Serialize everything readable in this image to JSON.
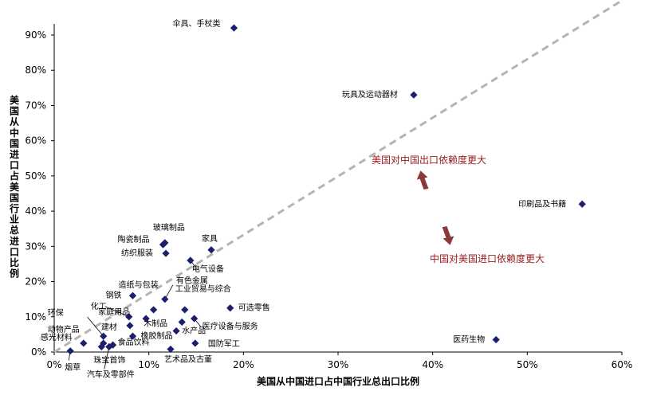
{
  "chart_data": {
    "type": "scatter",
    "xlabel": "美国从中国进口占中国行业总出口比例",
    "ylabel": "美国从中国进口占美国行业总进口比例",
    "xlim": [
      0,
      0.6
    ],
    "ylim": [
      0,
      0.9
    ],
    "x_ticks": [
      {
        "value": 0,
        "label": "0%"
      },
      {
        "value": 0.1,
        "label": "10%"
      },
      {
        "value": 0.2,
        "label": "20%"
      },
      {
        "value": 0.3,
        "label": "30%"
      },
      {
        "value": 0.4,
        "label": "40%"
      },
      {
        "value": 0.5,
        "label": "50%"
      },
      {
        "value": 0.6,
        "label": "60%"
      }
    ],
    "y_ticks": [
      {
        "value": 0,
        "label": "0%"
      },
      {
        "value": 0.1,
        "label": "10%"
      },
      {
        "value": 0.2,
        "label": "20%"
      },
      {
        "value": 0.3,
        "label": "30%"
      },
      {
        "value": 0.4,
        "label": "40%"
      },
      {
        "value": 0.5,
        "label": "50%"
      },
      {
        "value": 0.6,
        "label": "60%"
      },
      {
        "value": 0.7,
        "label": "70%"
      },
      {
        "value": 0.8,
        "label": "80%"
      },
      {
        "value": 0.9,
        "label": "90%"
      }
    ],
    "marker_color": "#1a1f6e",
    "trend_line": {
      "from": [
        0,
        0
      ],
      "to": [
        0.6,
        0.6
      ],
      "color": "#b4b4b4",
      "style": "dashed"
    },
    "points": [
      {
        "label": "伞具、手杖类",
        "x": 0.19,
        "y": 0.92
      },
      {
        "label": "玩具及运动器材",
        "x": 0.38,
        "y": 0.73
      },
      {
        "label": "印刷品及书籍",
        "x": 0.558,
        "y": 0.42
      },
      {
        "label": "医药生物",
        "x": 0.467,
        "y": 0.035
      },
      {
        "label": "玻璃制品",
        "x": 0.117,
        "y": 0.31
      },
      {
        "label": "陶瓷制品",
        "x": 0.115,
        "y": 0.305
      },
      {
        "label": "纺织服装",
        "x": 0.118,
        "y": 0.28
      },
      {
        "label": "家具",
        "x": 0.166,
        "y": 0.29
      },
      {
        "label": "电气设备",
        "x": 0.144,
        "y": 0.26
      },
      {
        "label": "钢铁",
        "x": 0.083,
        "y": 0.16
      },
      {
        "label": "造纸与包装",
        "x": 0.105,
        "y": 0.12
      },
      {
        "label": "有色金属",
        "x": 0.117,
        "y": 0.15
      },
      {
        "label": "家庭用品",
        "x": 0.097,
        "y": 0.095
      },
      {
        "label": "工业贸易与综合",
        "x": 0.138,
        "y": 0.12
      },
      {
        "label": "可选零售",
        "x": 0.186,
        "y": 0.125
      },
      {
        "label": "化工",
        "x": 0.079,
        "y": 0.1
      },
      {
        "label": "建材",
        "x": 0.08,
        "y": 0.075
      },
      {
        "label": "木制品",
        "x": 0.135,
        "y": 0.085
      },
      {
        "label": "医疗设备与服务",
        "x": 0.148,
        "y": 0.095
      },
      {
        "label": "环保",
        "x": 0.052,
        "y": 0.045
      },
      {
        "label": "橡胶制品",
        "x": 0.083,
        "y": 0.045
      },
      {
        "label": "水产品",
        "x": 0.129,
        "y": 0.06
      },
      {
        "label": "动物产品",
        "x": 0.052,
        "y": 0.025
      },
      {
        "label": "食品饮料",
        "x": 0.062,
        "y": 0.02
      },
      {
        "label": "感光材料",
        "x": 0.031,
        "y": 0.025
      },
      {
        "label": "国防军工",
        "x": 0.149,
        "y": 0.025
      },
      {
        "label": "珠宝首饰",
        "x": 0.05,
        "y": 0.015
      },
      {
        "label": "烟草",
        "x": 0.017,
        "y": 0.003
      },
      {
        "label": "汽车及零部件",
        "x": 0.058,
        "y": 0.015
      },
      {
        "label": "艺术品及古董",
        "x": 0.123,
        "y": 0.008
      }
    ],
    "annotations": [
      {
        "text": "美国对中国出口依赖度更大",
        "arrow_direction": "up"
      },
      {
        "text": "中国对美国进口依赖度更大",
        "arrow_direction": "down"
      }
    ]
  }
}
